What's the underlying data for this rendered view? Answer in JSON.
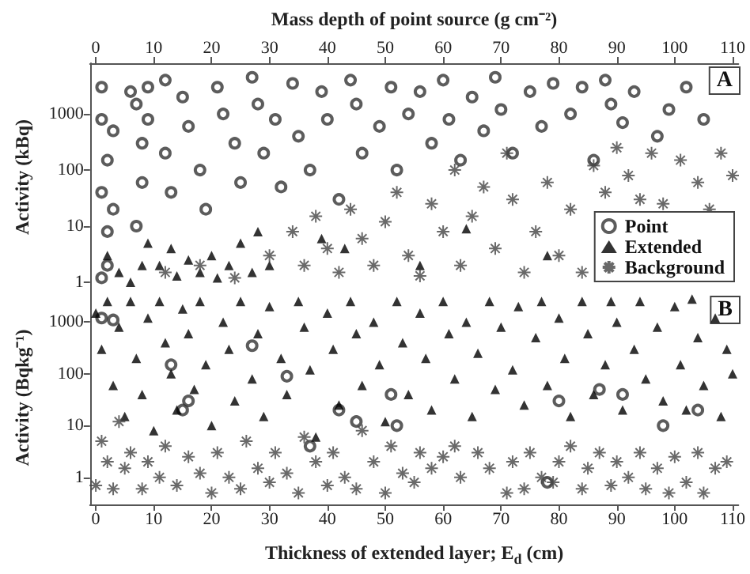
{
  "chart_data": [
    {
      "type": "scatter",
      "xlabel": "Mass depth of point source (g cm⁻²)",
      "ylabel": "Activity (kBq)",
      "xlim": [
        -1,
        111
      ],
      "xticks": [
        0,
        10,
        20,
        30,
        40,
        50,
        60,
        70,
        80,
        90,
        100,
        110
      ],
      "ylim": [
        0.7,
        8000
      ],
      "yticks": [
        1,
        10,
        100,
        1000
      ],
      "log": "y",
      "grid": false,
      "legend": "bottom right",
      "annotations": [
        "A"
      ],
      "series": [
        {
          "name": "Point",
          "marker": "circle",
          "color": "#333333",
          "x": [
            1,
            1,
            2,
            1,
            2,
            2,
            1,
            3,
            3,
            6,
            7,
            8,
            8,
            7,
            9,
            9,
            12,
            12,
            13,
            15,
            16,
            18,
            19,
            21,
            22,
            24,
            25,
            27,
            28,
            29,
            31,
            32,
            34,
            35,
            37,
            39,
            40,
            42,
            44,
            45,
            46,
            49,
            51,
            52,
            54,
            56,
            58,
            60,
            61,
            63,
            65,
            67,
            69,
            70,
            72,
            75,
            77,
            79,
            82,
            84,
            86,
            88,
            89,
            91,
            93,
            97,
            99,
            102,
            105
          ],
          "values": [
            3000,
            800,
            150,
            40,
            8,
            2,
            1.2,
            500,
            20,
            2500,
            1500,
            300,
            60,
            10,
            3000,
            800,
            4000,
            200,
            40,
            2000,
            600,
            100,
            20,
            3000,
            1000,
            300,
            60,
            4500,
            1500,
            200,
            800,
            50,
            3500,
            400,
            100,
            2500,
            800,
            30,
            4000,
            1500,
            200,
            600,
            3000,
            100,
            1000,
            2500,
            300,
            4000,
            800,
            150,
            2000,
            500,
            4500,
            1200,
            200,
            2500,
            600,
            3500,
            1000,
            3000,
            150,
            4000,
            1500,
            700,
            2500,
            400,
            1200,
            3000,
            800
          ]
        },
        {
          "name": "Extended",
          "marker": "triangle",
          "color": "#000000",
          "x": [
            2,
            4,
            6,
            8,
            9,
            11,
            13,
            14,
            16,
            18,
            20,
            21,
            23,
            25,
            27,
            28,
            30,
            39,
            43,
            56,
            64,
            78
          ],
          "values": [
            3,
            1.5,
            1,
            2,
            5,
            2,
            4,
            1.3,
            2.5,
            1.5,
            3,
            1.2,
            2,
            5,
            1.5,
            8,
            2,
            6,
            4,
            2,
            9,
            3
          ]
        },
        {
          "name": "Background",
          "marker": "cross",
          "color": "#444444",
          "x": [
            12,
            18,
            24,
            30,
            34,
            36,
            38,
            40,
            42,
            44,
            46,
            48,
            50,
            52,
            54,
            56,
            58,
            60,
            62,
            63,
            65,
            67,
            69,
            71,
            72,
            74,
            76,
            78,
            80,
            82,
            84,
            86,
            88,
            90,
            92,
            94,
            96,
            98,
            101,
            104,
            106,
            108,
            110
          ],
          "values": [
            1.5,
            2,
            1.2,
            3,
            8,
            2,
            15,
            4,
            1.5,
            20,
            6,
            2,
            12,
            40,
            3,
            1.3,
            25,
            8,
            100,
            2,
            15,
            50,
            4,
            200,
            30,
            1.5,
            8,
            60,
            3,
            20,
            1.5,
            120,
            40,
            250,
            80,
            30,
            200,
            25,
            150,
            60,
            20,
            200,
            80
          ]
        }
      ]
    },
    {
      "type": "scatter",
      "xlabel": "Thickness of extended layer; E$_{d}$ (cm)",
      "ylabel": "Activity (Bqkg⁻¹)",
      "xlim": [
        -1,
        111
      ],
      "xticks": [
        0,
        10,
        20,
        30,
        40,
        50,
        60,
        70,
        80,
        90,
        100,
        110
      ],
      "ylim": [
        0.3,
        4000
      ],
      "yticks": [
        1,
        10,
        100,
        1000
      ],
      "log": "y",
      "grid": false,
      "annotations": [
        "B"
      ],
      "series": [
        {
          "marker": "circle",
          "color": "#333333",
          "x": [
            1,
            3,
            13,
            15,
            16,
            27,
            33,
            37,
            42,
            45,
            51,
            52,
            78,
            80,
            87,
            91,
            98,
            104
          ],
          "values": [
            1200,
            1100,
            150,
            20,
            30,
            350,
            90,
            4,
            20,
            12,
            40,
            10,
            0.8,
            30,
            50,
            40,
            10,
            20
          ]
        },
        {
          "marker": "triangle",
          "color": "#000000",
          "x": [
            0,
            1,
            2,
            3,
            4,
            5,
            6,
            7,
            8,
            9,
            10,
            11,
            12,
            13,
            14,
            15,
            16,
            17,
            18,
            19,
            20,
            22,
            23,
            24,
            25,
            27,
            28,
            29,
            30,
            32,
            33,
            35,
            36,
            37,
            38,
            40,
            41,
            42,
            44,
            45,
            46,
            48,
            49,
            50,
            52,
            53,
            54,
            56,
            57,
            58,
            60,
            61,
            62,
            64,
            65,
            66,
            68,
            69,
            70,
            72,
            73,
            74,
            76,
            77,
            78,
            80,
            81,
            82,
            84,
            85,
            86,
            88,
            89,
            90,
            91,
            93,
            94,
            95,
            97,
            98,
            100,
            101,
            102,
            103,
            104,
            105,
            107,
            108,
            109,
            110
          ],
          "values": [
            1500,
            300,
            2500,
            60,
            800,
            15,
            2500,
            200,
            40,
            1200,
            8,
            2500,
            400,
            100,
            20,
            1800,
            600,
            50,
            2500,
            150,
            10,
            1000,
            300,
            30,
            2500,
            80,
            600,
            15,
            2000,
            200,
            40,
            2500,
            800,
            120,
            6,
            1500,
            300,
            25,
            2500,
            600,
            60,
            1000,
            150,
            12,
            2500,
            400,
            40,
            1500,
            200,
            20,
            2500,
            600,
            80,
            1000,
            15,
            250,
            2500,
            50,
            800,
            120,
            2000,
            25,
            500,
            2500,
            60,
            1200,
            200,
            15,
            2500,
            600,
            40,
            150,
            2500,
            1000,
            20,
            300,
            2500,
            80,
            800,
            30,
            2000,
            150,
            20,
            2800,
            500,
            60,
            1200,
            15,
            300,
            100
          ]
        },
        {
          "marker": "cross",
          "color": "#444444",
          "x": [
            0,
            1,
            2,
            3,
            4,
            5,
            6,
            8,
            9,
            11,
            12,
            14,
            16,
            18,
            20,
            21,
            23,
            25,
            26,
            28,
            30,
            31,
            33,
            35,
            36,
            38,
            40,
            41,
            43,
            45,
            46,
            48,
            50,
            51,
            53,
            55,
            56,
            58,
            60,
            62,
            63,
            66,
            68,
            71,
            72,
            74,
            75,
            77,
            79,
            80,
            82,
            84,
            85,
            87,
            89,
            90,
            92,
            94,
            95,
            97,
            99,
            100,
            102,
            104,
            105,
            107,
            109
          ],
          "values": [
            0.7,
            5,
            2,
            0.6,
            12,
            1.5,
            3,
            0.6,
            2,
            1,
            4,
            0.7,
            2.5,
            1.2,
            0.5,
            3,
            1,
            0.6,
            5,
            1.5,
            0.8,
            3,
            1.2,
            0.5,
            6,
            2,
            0.7,
            3,
            1,
            0.6,
            8,
            2,
            0.5,
            4,
            1.2,
            0.8,
            3,
            1.5,
            2.5,
            4,
            1,
            3,
            1.5,
            0.5,
            2,
            0.6,
            3,
            1,
            0.8,
            2,
            4,
            0.6,
            1.5,
            3,
            0.7,
            2,
            1,
            3,
            0.6,
            1.5,
            0.5,
            2.5,
            0.8,
            3,
            0.5,
            1.5,
            2
          ]
        }
      ]
    }
  ]
}
